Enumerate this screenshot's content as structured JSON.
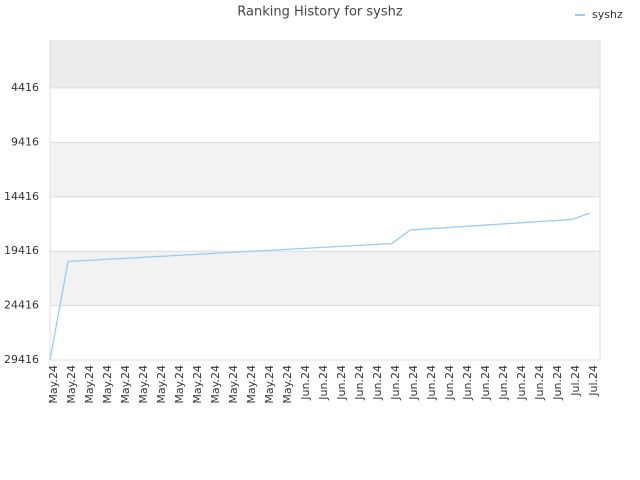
{
  "chart_data": {
    "type": "line",
    "title": "Ranking History for syshz",
    "categories": [
      "May.24",
      "May.24",
      "May.24",
      "May.24",
      "May.24",
      "May.24",
      "May.24",
      "May.24",
      "May.24",
      "May.24",
      "May.24",
      "May.24",
      "May.24",
      "May.24",
      "Jun.24",
      "Jun.24",
      "Jun.24",
      "Jun.24",
      "Jun.24",
      "Jun.24",
      "Jun.24",
      "Jun.24",
      "Jun.24",
      "Jun.24",
      "Jun.24",
      "Jun.24",
      "Jun.24",
      "Jun.24",
      "Jun.24",
      "Jul.24",
      "Jul.24"
    ],
    "series": [
      {
        "name": "syshz",
        "color": "#99ccf2",
        "values": [
          29416,
          20361,
          20269,
          20177,
          20085,
          19993,
          19901,
          19809,
          19717,
          19625,
          19534,
          19442,
          19350,
          19258,
          19166,
          19074,
          18982,
          18890,
          18798,
          18706,
          17466,
          17358,
          17250,
          17142,
          17034,
          16926,
          16818,
          16710,
          16602,
          16494,
          15903
        ]
      }
    ],
    "ylim": [
      29416,
      0
    ],
    "yticks": [
      4416,
      9416,
      14416,
      19416,
      24416,
      29416
    ],
    "grid": true,
    "legend": "top-right"
  }
}
